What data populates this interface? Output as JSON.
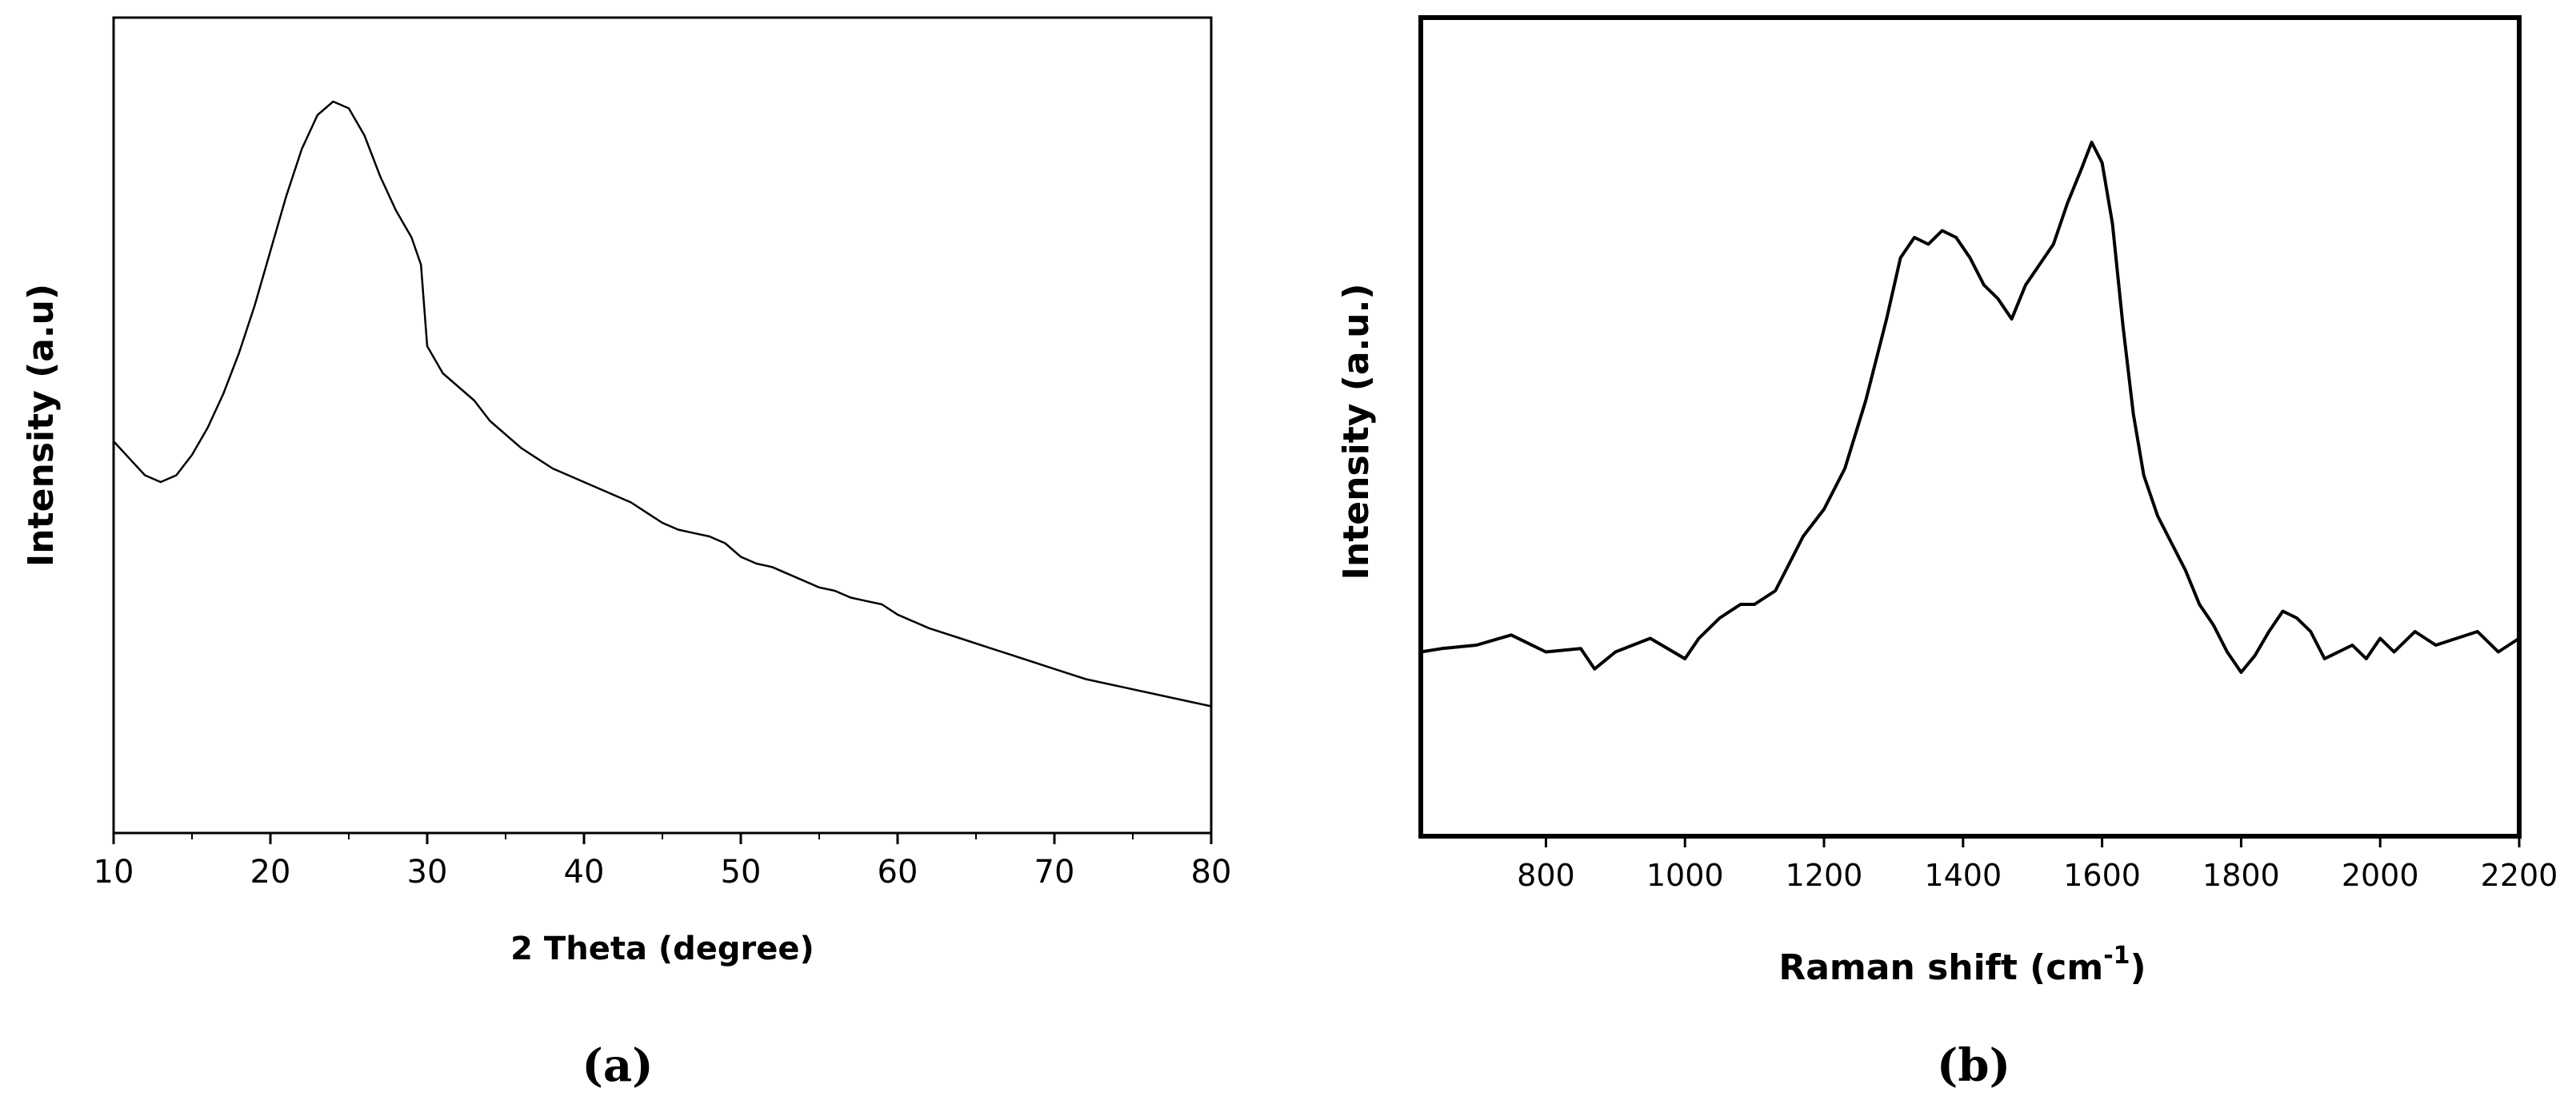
{
  "chart_data": [
    {
      "type": "line",
      "panel_label": "(a)",
      "xlabel": "2 Theta (degree)",
      "ylabel": "Intensity (a.u)",
      "xlim": [
        10,
        80
      ],
      "xticks": [
        10,
        20,
        30,
        40,
        50,
        60,
        70,
        80
      ],
      "yticks_shown": false,
      "grid": false,
      "series": [
        {
          "x": [
            10,
            11,
            12,
            13,
            14,
            15,
            16,
            17,
            18,
            19,
            20,
            21,
            22,
            23,
            24,
            25,
            26,
            27,
            28,
            29,
            29.6,
            30,
            31,
            32,
            33,
            34,
            35,
            36,
            37,
            38,
            39,
            40,
            41,
            42,
            43,
            44,
            45,
            46,
            47,
            48,
            49,
            50,
            51,
            52,
            53,
            54,
            55,
            56,
            57,
            58,
            59,
            60,
            62,
            64,
            66,
            68,
            70,
            72,
            74,
            76,
            78,
            80
          ],
          "y": [
            0.48,
            0.455,
            0.43,
            0.42,
            0.43,
            0.46,
            0.5,
            0.55,
            0.61,
            0.68,
            0.76,
            0.84,
            0.91,
            0.96,
            0.98,
            0.97,
            0.93,
            0.87,
            0.82,
            0.78,
            0.74,
            0.62,
            0.58,
            0.56,
            0.54,
            0.51,
            0.49,
            0.47,
            0.455,
            0.44,
            0.43,
            0.42,
            0.41,
            0.4,
            0.39,
            0.375,
            0.36,
            0.35,
            0.345,
            0.34,
            0.33,
            0.31,
            0.3,
            0.295,
            0.285,
            0.275,
            0.265,
            0.26,
            0.25,
            0.245,
            0.24,
            0.225,
            0.205,
            0.19,
            0.175,
            0.16,
            0.145,
            0.13,
            0.12,
            0.11,
            0.1,
            0.09
          ]
        }
      ]
    },
    {
      "type": "line",
      "panel_label": "(b)",
      "xlabel": "Raman shift (cm",
      "xlabel_superscript": "-1",
      "xlabel_suffix": ")",
      "ylabel": "Intensity (a.u.)",
      "xlim": [
        620,
        2200
      ],
      "xticks": [
        800,
        1000,
        1200,
        1400,
        1600,
        1800,
        2000,
        2200
      ],
      "yticks_shown": false,
      "grid": false,
      "series": [
        {
          "x": [
            620,
            650,
            700,
            750,
            800,
            850,
            870,
            900,
            950,
            1000,
            1020,
            1050,
            1080,
            1100,
            1130,
            1150,
            1170,
            1200,
            1230,
            1260,
            1290,
            1310,
            1330,
            1350,
            1370,
            1390,
            1410,
            1430,
            1450,
            1470,
            1490,
            1510,
            1530,
            1550,
            1570,
            1585,
            1600,
            1615,
            1630,
            1645,
            1660,
            1680,
            1700,
            1720,
            1740,
            1760,
            1780,
            1800,
            1820,
            1840,
            1860,
            1880,
            1900,
            1920,
            1940,
            1960,
            1980,
            2000,
            2020,
            2050,
            2080,
            2110,
            2140,
            2170,
            2200
          ],
          "y": [
            0.17,
            0.175,
            0.18,
            0.195,
            0.17,
            0.175,
            0.145,
            0.17,
            0.19,
            0.16,
            0.19,
            0.22,
            0.24,
            0.24,
            0.26,
            0.3,
            0.34,
            0.38,
            0.44,
            0.54,
            0.66,
            0.75,
            0.78,
            0.77,
            0.79,
            0.78,
            0.75,
            0.71,
            0.69,
            0.66,
            0.71,
            0.74,
            0.77,
            0.83,
            0.88,
            0.92,
            0.89,
            0.8,
            0.65,
            0.52,
            0.43,
            0.37,
            0.33,
            0.29,
            0.24,
            0.21,
            0.17,
            0.14,
            0.165,
            0.2,
            0.23,
            0.22,
            0.2,
            0.16,
            0.17,
            0.18,
            0.16,
            0.19,
            0.17,
            0.2,
            0.18,
            0.19,
            0.2,
            0.17,
            0.19
          ]
        }
      ]
    }
  ]
}
